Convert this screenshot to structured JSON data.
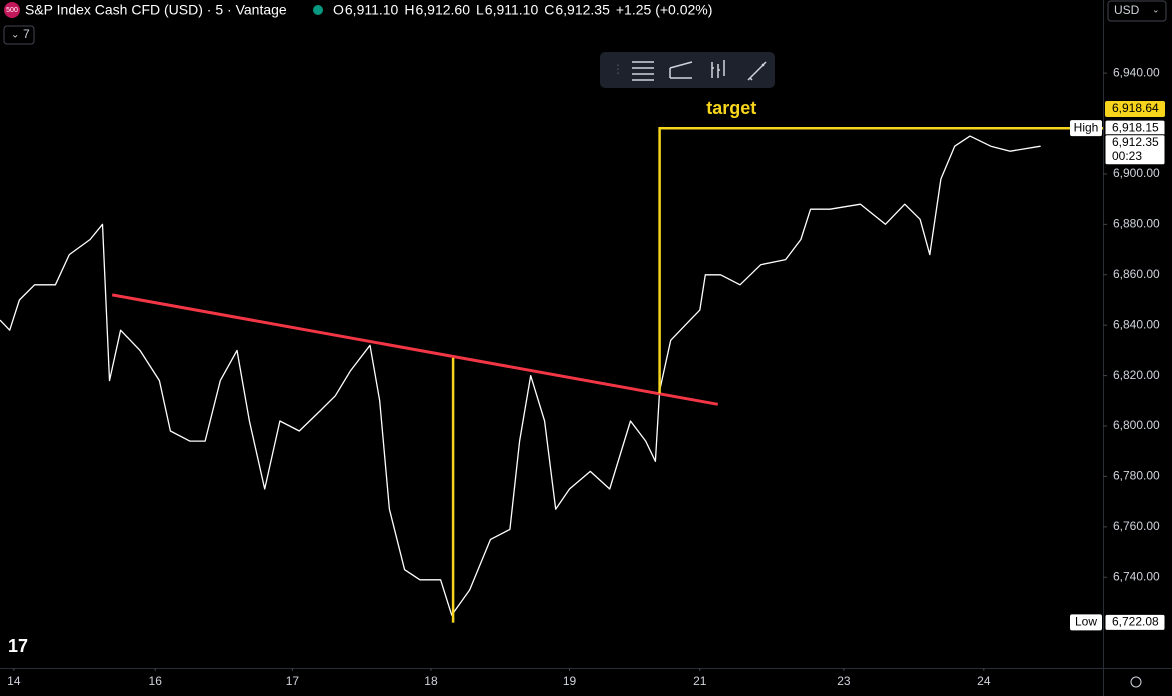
{
  "header": {
    "badge": "500",
    "title": "S&P Index Cash CFD (USD) · 5 · Vantage",
    "ohlc": [
      {
        "key": "O",
        "label": "6,911.10"
      },
      {
        "key": "H",
        "label": "6,912.60"
      },
      {
        "key": "L",
        "label": "6,911.10"
      },
      {
        "key": "C",
        "label": "6,912.35"
      }
    ],
    "change": "+1.25 (+0.02%)",
    "indicators": "7",
    "currency": "USD"
  },
  "chart_data": {
    "type": "line",
    "color": "#ffffff",
    "x": [
      -0.1,
      -0.03,
      0.04,
      0.15,
      0.3,
      0.4,
      0.55,
      0.64,
      0.69,
      0.77,
      0.91,
      1.05,
      1.13,
      1.27,
      1.38,
      1.49,
      1.61,
      1.7,
      1.81,
      1.92,
      2.06,
      2.21,
      2.32,
      2.43,
      2.57,
      2.64,
      2.71,
      2.82,
      2.93,
      3.08,
      3.16,
      3.29,
      3.44,
      3.58,
      3.65,
      3.73,
      3.83,
      3.91,
      4.01,
      4.16,
      4.3,
      4.45,
      4.56,
      4.63,
      4.66,
      4.74,
      4.88,
      4.95,
      4.99,
      5.1,
      5.24,
      5.39,
      5.57,
      5.68,
      5.75,
      5.89,
      6.11,
      6.29,
      6.43,
      6.54,
      6.61,
      6.69,
      6.79,
      6.9,
      7.05,
      7.19,
      7.41
    ],
    "values": [
      6842,
      6838,
      6850,
      6856,
      6856,
      6868,
      6874,
      6880,
      6818,
      6838,
      6830,
      6818,
      6798,
      6794,
      6794,
      6818,
      6830,
      6802,
      6775,
      6802,
      6798,
      6806,
      6812,
      6822,
      6832,
      6810,
      6767,
      6743,
      6739,
      6739,
      6725,
      6735,
      6755,
      6759,
      6794,
      6820,
      6802,
      6767,
      6775,
      6782,
      6775,
      6802,
      6794,
      6786,
      6814,
      6834,
      6842,
      6846,
      6860,
      6860,
      6856,
      6864,
      6866,
      6874,
      6886,
      6886,
      6888,
      6880,
      6888,
      6882,
      6868,
      6898,
      6911,
      6915,
      6911,
      6909,
      6911
    ],
    "xlim": [
      -0.1,
      7.86
    ],
    "ylim": [
      6704,
      6969
    ],
    "xticks": [
      {
        "value": 0,
        "label": "14"
      },
      {
        "value": 1.02,
        "label": "16"
      },
      {
        "value": 2.01,
        "label": "17"
      },
      {
        "value": 3.01,
        "label": "18"
      },
      {
        "value": 4.01,
        "label": "19"
      },
      {
        "value": 4.95,
        "label": "21"
      },
      {
        "value": 5.99,
        "label": "23"
      },
      {
        "value": 7.0,
        "label": "24"
      }
    ],
    "yticks": [
      {
        "value": 6740,
        "label": "6,740.00"
      },
      {
        "value": 6760,
        "label": "6,760.00"
      },
      {
        "value": 6780,
        "label": "6,780.00"
      },
      {
        "value": 6800,
        "label": "6,800.00"
      },
      {
        "value": 6820,
        "label": "6,820.00"
      },
      {
        "value": 6840,
        "label": "6,840.00"
      },
      {
        "value": 6860,
        "label": "6,860.00"
      },
      {
        "value": 6880,
        "label": "6,880.00"
      },
      {
        "value": 6900,
        "label": "6,900.00"
      },
      {
        "value": 6940,
        "label": "6,940.00"
      }
    ],
    "trendline": {
      "x": [
        0.71,
        5.08
      ],
      "values": [
        6852,
        6808.6
      ],
      "color": "#f23645"
    },
    "measure_line": {
      "x": [
        3.17,
        3.17
      ],
      "values": [
        6827,
        6722
      ],
      "color": "#f7d51d"
    },
    "target": {
      "label": "target",
      "x": [
        4.66,
        4.66,
        7.86
      ],
      "values": [
        6813,
        6918.15,
        6918.15
      ],
      "color": "#f7d51d"
    },
    "price_labels": [
      {
        "value": 6918.64,
        "label": "6,918.64",
        "color": "#f7d51d"
      },
      {
        "tag": "High",
        "value": 6918.15,
        "label": "6,918.15"
      },
      {
        "value": 6912.35,
        "label": "6,912.35",
        "countdown": "00:23"
      },
      {
        "tag": "Low",
        "value": 6722.08,
        "label": "6,722.08"
      }
    ]
  }
}
